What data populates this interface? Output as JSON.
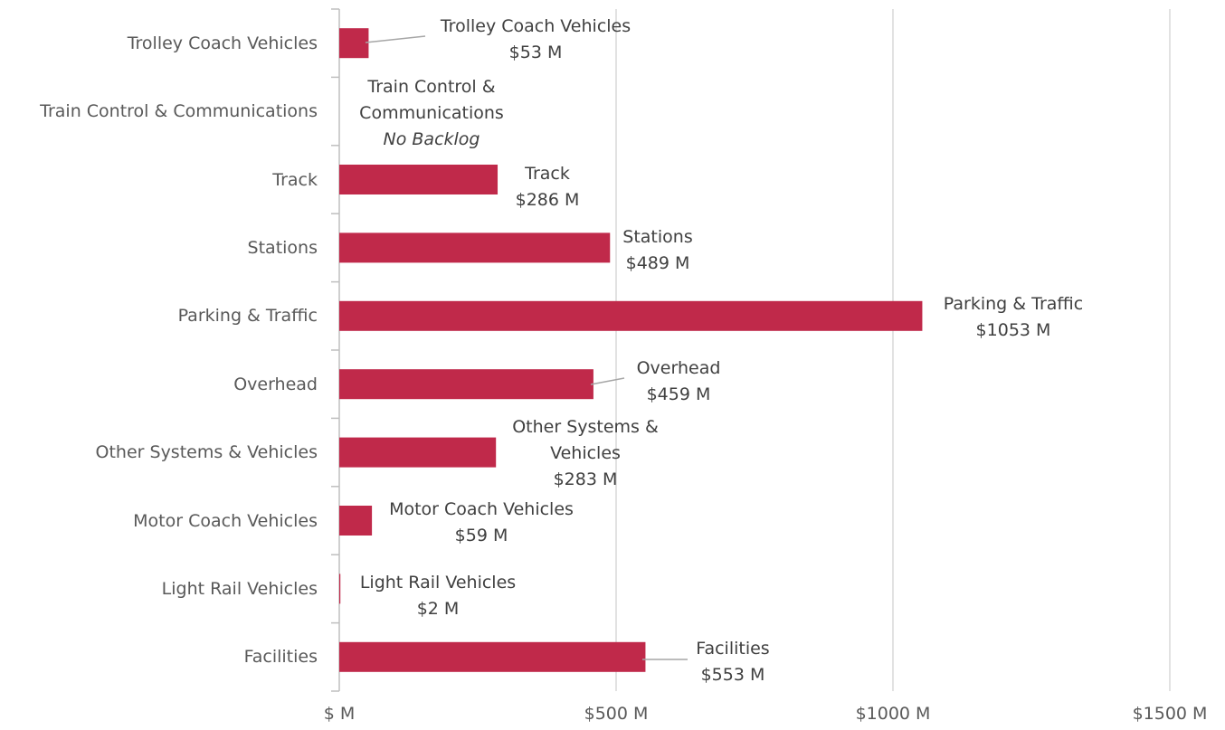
{
  "chart_data": {
    "type": "barh",
    "categories": [
      "Trolley Coach Vehicles",
      "Train Control & Communications",
      "Track",
      "Stations",
      "Parking & Traffic",
      "Overhead",
      "Other Systems & Vehicles",
      "Motor Coach Vehicles",
      "Light Rail Vehicles",
      "Facilities"
    ],
    "values": [
      53,
      0,
      286,
      489,
      1053,
      459,
      283,
      59,
      2,
      553
    ],
    "value_labels": [
      "$53 M",
      "No Backlog",
      "$286 M",
      "$489 M",
      "$1053 M",
      "$459 M",
      "$283 M",
      "$59 M",
      "$2 M",
      "$553 M"
    ],
    "color": "#c0294a",
    "xlim": [
      0,
      1500
    ],
    "xticks": [
      {
        "value": 0,
        "label": "$ M"
      },
      {
        "value": 500,
        "label": "$500 M"
      },
      {
        "value": 1000,
        "label": "$1000 M"
      },
      {
        "value": 1500,
        "label": "$1500 M"
      }
    ],
    "grid": true
  }
}
